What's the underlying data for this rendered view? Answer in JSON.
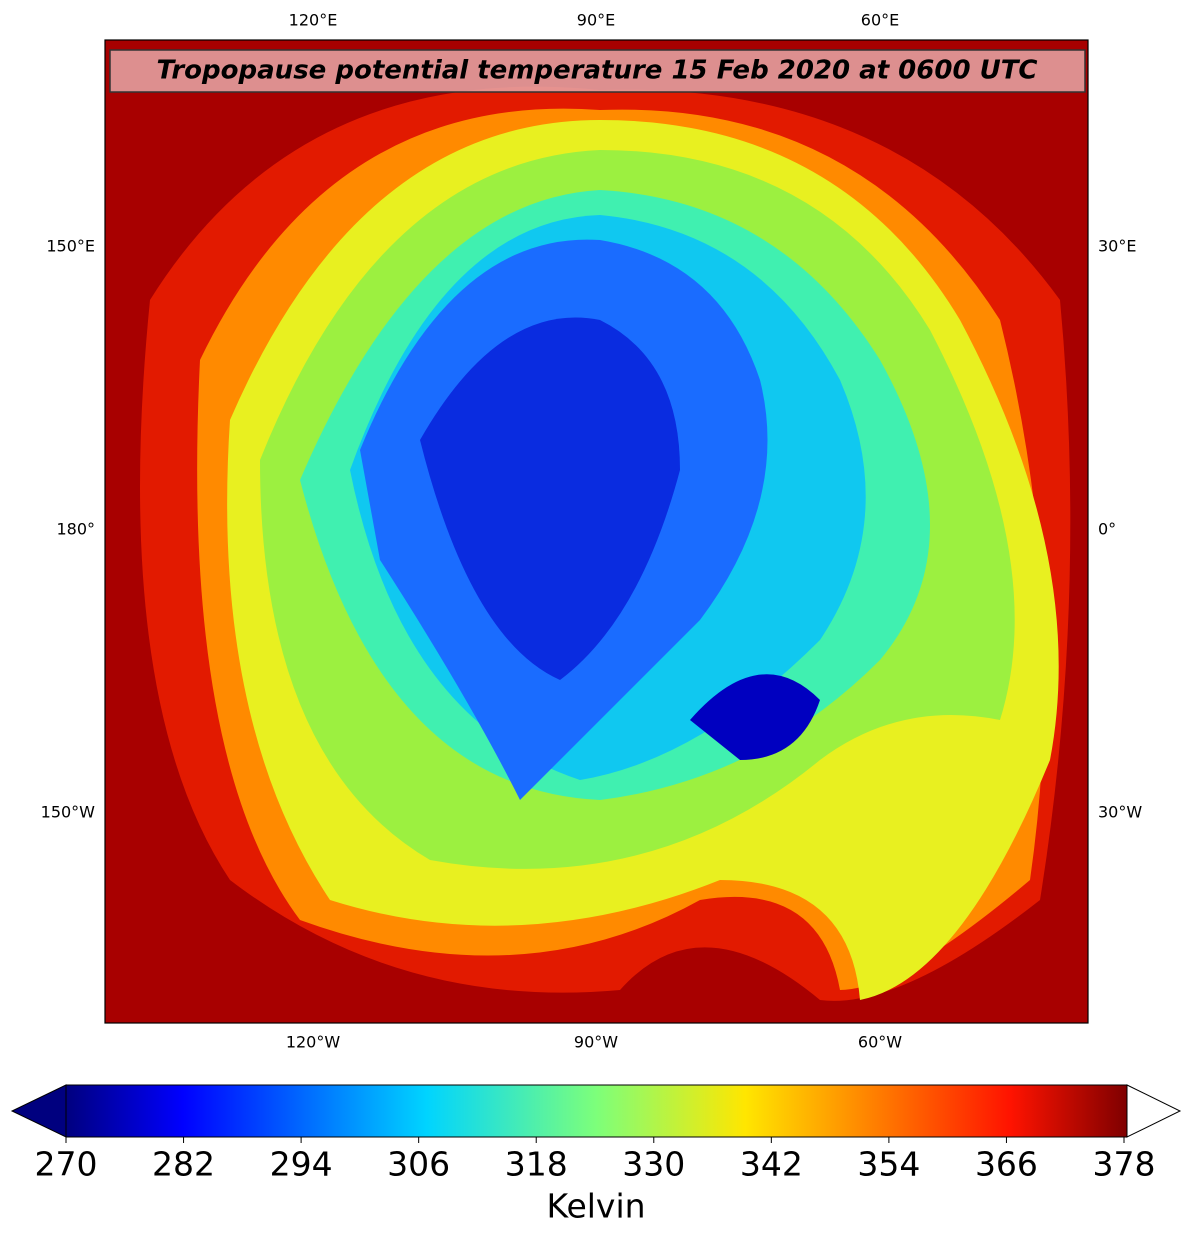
{
  "title": "Tropopause potential temperature 15 Feb 2020 at 0600 UTC",
  "longitude_labels": {
    "top": [
      "120°E",
      "90°E",
      "60°E"
    ],
    "bottom": [
      "120°W",
      "90°W",
      "60°W"
    ],
    "left": [
      "150°E",
      "180°",
      "150°W"
    ],
    "right": [
      "30°E",
      "0°",
      "30°W"
    ]
  },
  "colorbar": {
    "label": "Kelvin",
    "range": [
      270,
      378
    ],
    "ticks": [
      270,
      282,
      294,
      306,
      318,
      330,
      342,
      354,
      366,
      378
    ]
  }
}
